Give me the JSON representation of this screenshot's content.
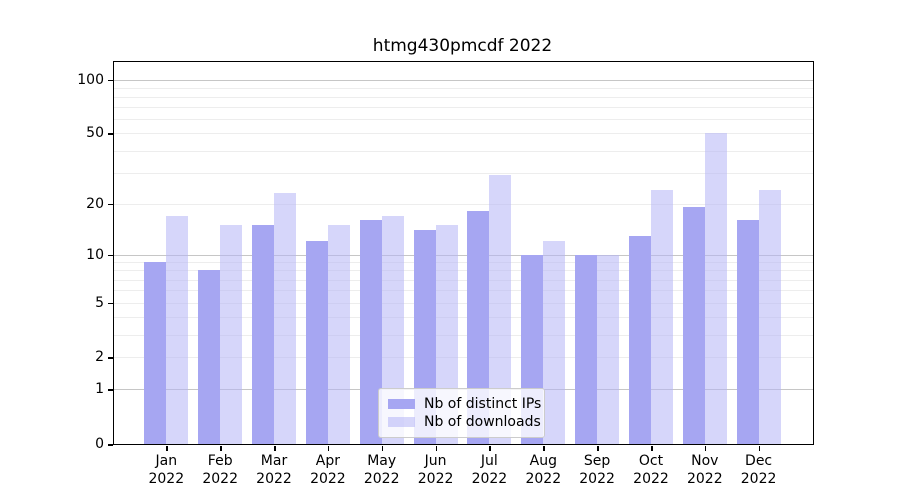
{
  "chart_data": {
    "type": "bar",
    "title": "htmg430pmcdf 2022",
    "categories": [
      "Jan 2022",
      "Feb 2022",
      "Mar 2022",
      "Apr 2022",
      "May 2022",
      "Jun 2022",
      "Jul 2022",
      "Aug 2022",
      "Sep 2022",
      "Oct 2022",
      "Nov 2022",
      "Dec 2022"
    ],
    "series": [
      {
        "key": "distinct-ips",
        "name": "Nb of distinct IPs",
        "color": "#a6a6f2",
        "values": [
          9,
          8,
          15,
          12,
          16,
          14,
          18,
          10,
          10,
          13,
          19,
          16
        ]
      },
      {
        "key": "downloads",
        "name": "Nb of downloads",
        "color": "rgba(180, 180, 245, 0.55)",
        "values": [
          17,
          15,
          23,
          15,
          17,
          15,
          29,
          12,
          10,
          24,
          50,
          24
        ]
      }
    ],
    "yscale": "log1p",
    "ylim": [
      0,
      125
    ],
    "yticks": [
      100,
      50,
      20,
      10,
      5,
      2,
      1,
      0
    ],
    "y_gridlines": {
      "major": [
        1,
        10,
        100
      ],
      "minor": [
        2,
        3,
        4,
        5,
        6,
        7,
        8,
        9,
        20,
        30,
        40,
        50,
        60,
        70,
        80,
        90
      ]
    },
    "legend_position": "lower center",
    "grid": true
  }
}
